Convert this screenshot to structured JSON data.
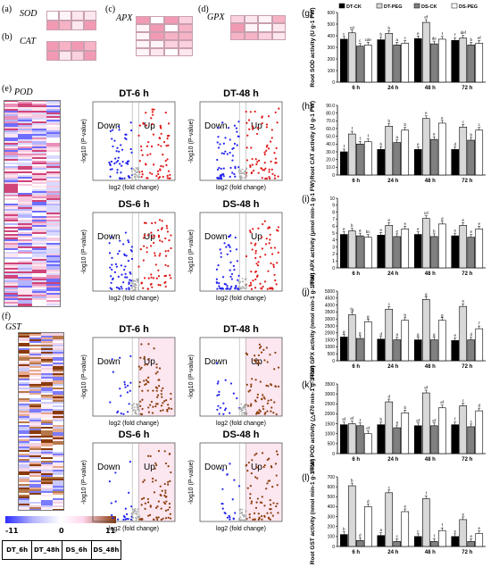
{
  "panel_labels": {
    "a": "(a)",
    "b": "(b)",
    "c": "(c)",
    "d": "(d)",
    "e": "(e)",
    "f": "(f)",
    "g": "(g)",
    "h": "(h)",
    "i": "(i)",
    "j": "(j)",
    "k": "(k)",
    "l": "(l)"
  },
  "genes": {
    "sod": "SOD",
    "cat": "CAT",
    "apx": "APX",
    "gpx": "GPX",
    "pod": "POD",
    "gst": "GST"
  },
  "scale": {
    "min": "-11",
    "mid": "0",
    "max": "11"
  },
  "sample_labels": [
    "DT_6h",
    "DT_48h",
    "DS_6h",
    "DS_48h"
  ],
  "volcano": {
    "titles": [
      "DT-6 h",
      "DT-48 h",
      "DS-6 h",
      "DS-48 h",
      "DT-6 h",
      "DT-48 h",
      "DS-6 h",
      "DS-48 h"
    ],
    "down": "Down",
    "up": "Up",
    "xlabel": "log2 (fold change)",
    "ylabel": "-log10 (P-value)",
    "yticks": [
      "0",
      "20",
      "40",
      "60",
      "80",
      "100"
    ],
    "xticks": [
      "-8",
      "-4",
      "0",
      "4",
      "8"
    ]
  },
  "legend": [
    "DT-CK",
    "DT-PEG",
    "DS-CK",
    "DS-PEG"
  ],
  "chart_data": [
    {
      "type": "bar",
      "id": "g",
      "categories": [
        "6 h",
        "24 h",
        "48 h",
        "72 h"
      ],
      "ylabel": "Root SOD activity (U g-1 FW)",
      "ylim": [
        0,
        600
      ],
      "yticks": [
        "0",
        "100",
        "200",
        "300",
        "400",
        "500",
        "600"
      ],
      "series": [
        {
          "name": "DT-CK",
          "values": [
            370,
            365,
            375,
            360
          ]
        },
        {
          "name": "DT-PEG",
          "values": [
            425,
            420,
            515,
            380
          ]
        },
        {
          "name": "DS-CK",
          "values": [
            310,
            320,
            330,
            320
          ]
        },
        {
          "name": "DS-PEG",
          "values": [
            320,
            335,
            370,
            335
          ]
        }
      ],
      "letters": [
        [
          "c",
          "b",
          "e",
          "f"
        ],
        [
          "cd",
          "b",
          "ef",
          "def"
        ],
        [
          "c",
          "a",
          "de",
          "b"
        ],
        [
          "cde",
          "c",
          "f",
          "ef"
        ]
      ],
      "ctrl_color": "#000000"
    },
    {
      "type": "bar",
      "id": "h",
      "categories": [
        "6 h",
        "24 h",
        "48 h",
        "72 h"
      ],
      "ylabel": "Root CAT activity (U g-1 FW)",
      "ylim": [
        0,
        90
      ],
      "yticks": [
        "0",
        "10.0",
        "20.0",
        "30.0",
        "40.0",
        "50.0",
        "60.0",
        "70.0",
        "80.0",
        "90.0"
      ],
      "series": [
        {
          "name": "DT-CK",
          "values": [
            30,
            33,
            33,
            33
          ]
        },
        {
          "name": "DT-PEG",
          "values": [
            53,
            63,
            73,
            62
          ]
        },
        {
          "name": "DS-CK",
          "values": [
            40,
            42,
            46,
            45
          ]
        },
        {
          "name": "DS-PEG",
          "values": [
            43,
            58,
            67,
            58
          ]
        }
      ],
      "letters": [
        [
          "f",
          "b",
          "e",
          "d"
        ],
        [
          "f",
          "b",
          "e",
          "c"
        ],
        [
          "f",
          "a",
          "e",
          "b"
        ],
        [
          "f",
          "b",
          "e",
          "c"
        ]
      ]
    },
    {
      "type": "bar",
      "id": "i",
      "categories": [
        "6 h",
        "24 h",
        "48 h",
        "72 h"
      ],
      "ylabel": "Root APX activity (μmol min-1 g-1 FW)",
      "ylim": [
        0,
        10
      ],
      "yticks": [
        "0",
        "1",
        "2",
        "3",
        "4",
        "5",
        "6",
        "7",
        "8",
        "9",
        "10"
      ],
      "series": [
        {
          "name": "DT-CK",
          "values": [
            4.8,
            4.7,
            4.8,
            4.6
          ]
        },
        {
          "name": "DT-PEG",
          "values": [
            5.3,
            6.1,
            7.1,
            6.1
          ]
        },
        {
          "name": "DS-CK",
          "values": [
            4.6,
            4.5,
            4.5,
            4.4
          ]
        },
        {
          "name": "DS-PEG",
          "values": [
            4.4,
            5.6,
            6.3,
            5.6
          ]
        }
      ],
      "letters": [
        [
          "e",
          "e",
          "e",
          "e"
        ],
        [
          "b",
          "e",
          "cd",
          "e"
        ],
        [
          "a",
          "e",
          "b",
          "e"
        ],
        [
          "bc",
          "e",
          "d",
          "e"
        ]
      ]
    },
    {
      "type": "bar",
      "id": "j",
      "categories": [
        "6 h",
        "24 h",
        "48 h",
        "72 h"
      ],
      "ylabel": "Root GPX activity (nmol min-1 g-1 FW)",
      "ylim": [
        0,
        5000
      ],
      "yticks": [
        "0",
        "500",
        "1000",
        "1500",
        "2000",
        "2500",
        "3000",
        "3500",
        "4000",
        "4500",
        "5000"
      ],
      "series": [
        {
          "name": "DT-CK",
          "values": [
            1700,
            1550,
            1500,
            1450
          ]
        },
        {
          "name": "DT-PEG",
          "values": [
            3300,
            3700,
            4400,
            3900
          ]
        },
        {
          "name": "DS-CK",
          "values": [
            1600,
            1500,
            1500,
            1500
          ]
        },
        {
          "name": "DS-PEG",
          "values": [
            2800,
            2900,
            2900,
            2300
          ]
        }
      ],
      "letters": [
        [
          "g",
          "d",
          "g",
          "e"
        ],
        [
          "fg",
          "c",
          "g",
          "e"
        ],
        [
          "g",
          "a",
          "g",
          "d"
        ],
        [
          "g",
          "b",
          "g",
          "f"
        ]
      ]
    },
    {
      "type": "bar",
      "id": "k",
      "categories": [
        "6 h",
        "24 h",
        "48 h",
        "72 h"
      ],
      "ylabel": "Root POD activity (△470 min-1 g-1 FW)",
      "ylim": [
        0,
        3500
      ],
      "yticks": [
        "0",
        "500",
        "1000",
        "1500",
        "2000",
        "2500",
        "3000",
        "3500"
      ],
      "series": [
        {
          "name": "DT-CK",
          "values": [
            1450,
            1450,
            1400,
            1450
          ]
        },
        {
          "name": "DT-PEG",
          "values": [
            1500,
            2600,
            3050,
            2400
          ]
        },
        {
          "name": "DS-CK",
          "values": [
            1400,
            1300,
            1400,
            1350
          ]
        },
        {
          "name": "DS-PEG",
          "values": [
            1000,
            2050,
            2300,
            2150
          ]
        }
      ],
      "letters": [
        [
          "ef",
          "b",
          "ef",
          "f"
        ],
        [
          "ef",
          "d",
          "ef",
          "c"
        ],
        [
          "f",
          "a",
          "ef",
          "c"
        ],
        [
          "ef",
          "b",
          "ef",
          "d"
        ]
      ]
    },
    {
      "type": "bar",
      "id": "l",
      "categories": [
        "6 h",
        "24 h",
        "48 h",
        "72 h"
      ],
      "ylabel": "Root GST activity (nmol min-1 g-1 FW)",
      "ylim": [
        0,
        700
      ],
      "yticks": [
        "0",
        "100",
        "200",
        "300",
        "400",
        "500",
        "600",
        "700"
      ],
      "series": [
        {
          "name": "DT-CK",
          "values": [
            120,
            110,
            100,
            100
          ]
        },
        {
          "name": "DT-PEG",
          "values": [
            610,
            540,
            480,
            270
          ]
        },
        {
          "name": "DS-CK",
          "values": [
            60,
            50,
            50,
            50
          ]
        },
        {
          "name": "DS-PEG",
          "values": [
            400,
            350,
            160,
            130
          ]
        }
      ],
      "letters": [
        [
          "b",
          "a",
          "c",
          "e"
        ],
        [
          "b",
          "c",
          "f",
          "e"
        ],
        [
          "d",
          "c",
          "f",
          "e"
        ],
        [
          "d",
          "e",
          "f",
          "e"
        ]
      ]
    }
  ]
}
